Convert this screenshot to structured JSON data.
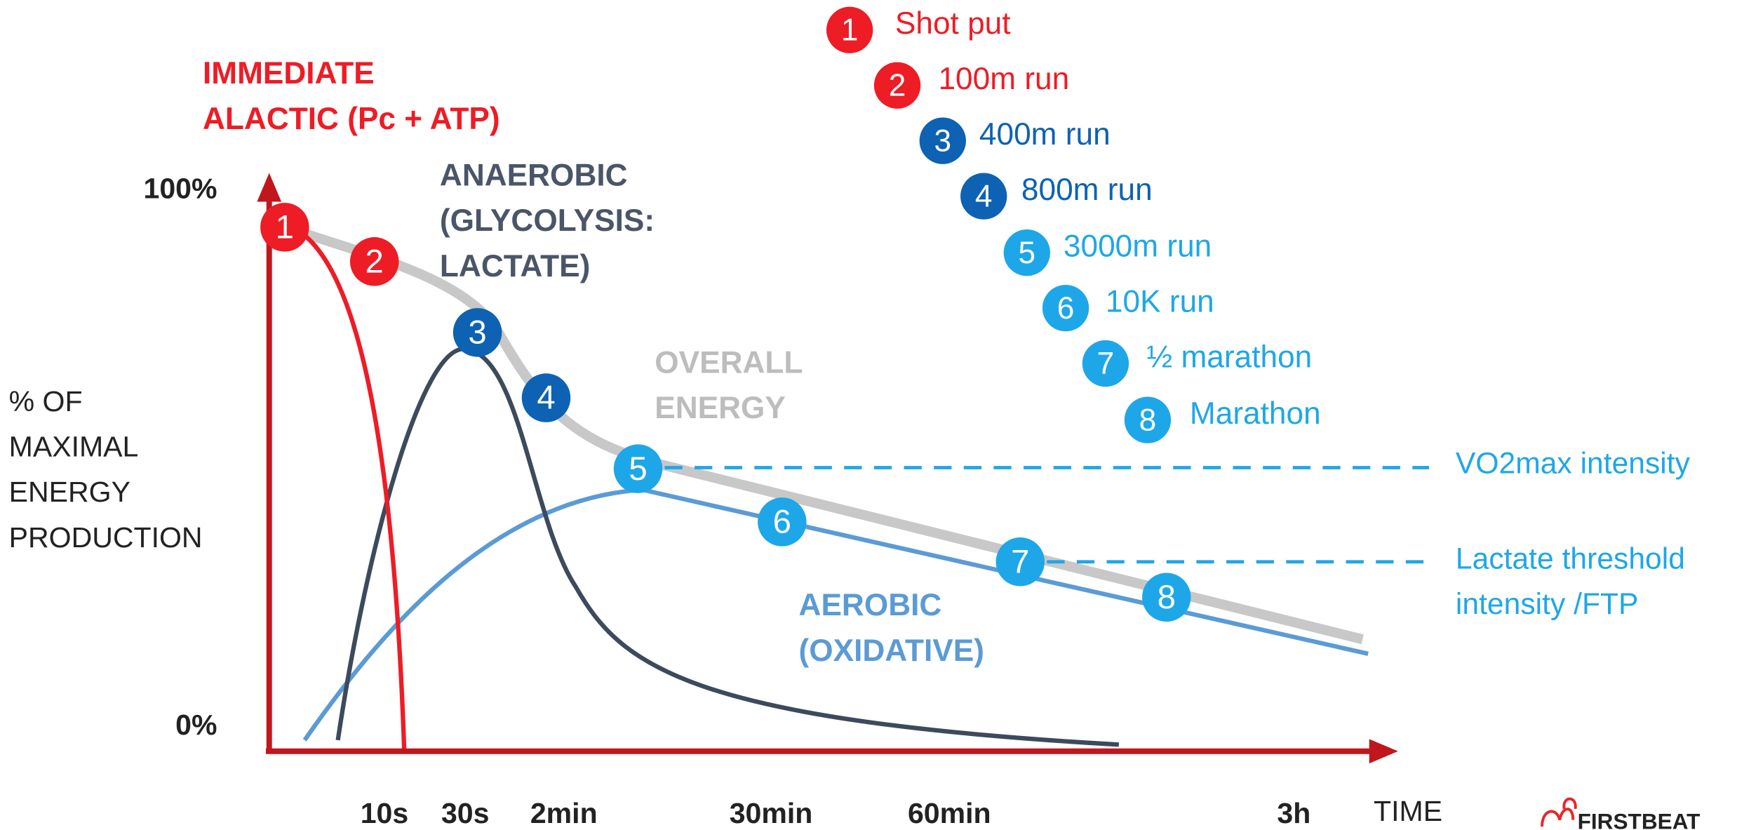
{
  "y_axis": {
    "label": [
      "% OF",
      "MAXIMAL",
      "ENERGY",
      "PRODUCTION"
    ],
    "ticks": [
      "100%",
      "0%"
    ]
  },
  "x_axis": {
    "label": "TIME",
    "ticks": [
      "10s",
      "30s",
      "2min",
      "30min",
      "60min",
      "3h"
    ]
  },
  "curve_labels": {
    "immediate": [
      "IMMEDIATE",
      "ALACTIC (Pc + ATP)"
    ],
    "anaerobic": [
      "ANAEROBIC",
      "(GLYCOLYSIS:",
      "LACTATE)"
    ],
    "overall": [
      "OVERALL",
      "ENERGY"
    ],
    "aerobic": [
      "AEROBIC",
      "(OXIDATIVE)"
    ]
  },
  "legend": [
    {
      "number": "1",
      "label": "Shot put",
      "color": "#ee1c25"
    },
    {
      "number": "2",
      "label": "100m run",
      "color": "#ee1c25"
    },
    {
      "number": "3",
      "label": "400m run",
      "color": "#0d62b3"
    },
    {
      "number": "4",
      "label": "800m run",
      "color": "#0d62b3"
    },
    {
      "number": "5",
      "label": "3000m run",
      "color": "#1ea7e8"
    },
    {
      "number": "6",
      "label": "10K run",
      "color": "#1ea7e8"
    },
    {
      "number": "7",
      "label": "½ marathon",
      "color": "#1ea7e8"
    },
    {
      "number": "8",
      "label": "Marathon",
      "color": "#1ea7e8"
    }
  ],
  "reference_lines": [
    {
      "label": [
        "VO2max intensity"
      ]
    },
    {
      "label": [
        "Lactate threshold",
        "intensity /FTP"
      ]
    }
  ],
  "logo": "FIRSTBEAT"
}
